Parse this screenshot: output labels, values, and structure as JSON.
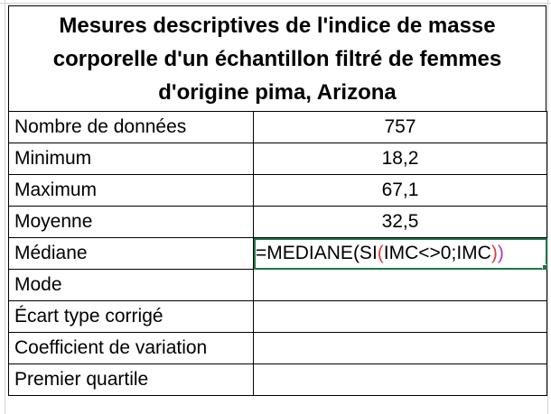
{
  "title": "Mesures descriptives de l'indice de masse corporelle d'un échantillon filtré de femmes d'origine pima, Arizona",
  "rows": [
    {
      "label": "Nombre de données",
      "value": "757"
    },
    {
      "label": "Minimum",
      "value": "18,2"
    },
    {
      "label": "Maximum",
      "value": "67,1"
    },
    {
      "label": "Moyenne",
      "value": "32,5"
    },
    {
      "label": "Médiane",
      "value": ""
    },
    {
      "label": "Mode",
      "value": ""
    },
    {
      "label": "Écart type corrigé",
      "value": ""
    },
    {
      "label": "Coefficient de variation",
      "value": ""
    },
    {
      "label": "Premier quartile",
      "value": ""
    }
  ],
  "formula": {
    "prefix": "=MEDIANE(SI",
    "open_paren": "(",
    "condition": "IMC<>0;IMC",
    "close_paren": ")",
    "final_paren": ")"
  },
  "colors": {
    "selection": "#217346",
    "paren_inner": "#e03b3b",
    "paren_outer": "#b03ab0"
  }
}
